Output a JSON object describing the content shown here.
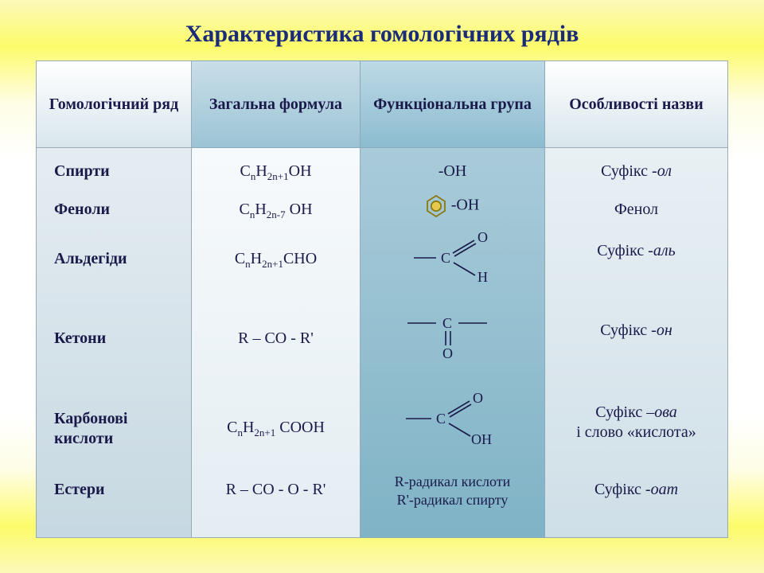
{
  "title": "Характеристика гомологічних рядів",
  "columns": {
    "c1": "Гомологічний ряд",
    "c2": "Загальна формула",
    "c3": "Функціональна група",
    "c4": "Особливості назви"
  },
  "rows": {
    "alcohols": {
      "name": "Спирти",
      "formula_html": "C<span class='sub'>n</span>H<span class='sub'>2n+1</span>OH",
      "group_text": "-ОН",
      "naming_html": "Суфікс -<span class='it'>ол</span>"
    },
    "phenols": {
      "name": "Феноли",
      "formula_html": "C<span class='sub'>n</span>H<span class='sub'>2n-7</span> OH",
      "group_text": "-ОН",
      "naming_html": "Фенол"
    },
    "aldehydes": {
      "name": "Альдегіди",
      "formula_html": "C<span class='sub'>n</span>H<span class='sub'>2n+1</span>CHO",
      "group_text": "",
      "naming_html": "Суфікс -<span class='it'>аль</span>"
    },
    "ketones": {
      "name": "Кетони",
      "formula_html": "R – CO - R'",
      "group_text": "",
      "naming_html": "Суфікс -<span class='it'>он</span>"
    },
    "carboxylic": {
      "name_html": "Карбонові<br>кислоти",
      "formula_html": "C<span class='sub'>n</span>H<span class='sub'>2n+1</span> COOH",
      "group_text": "",
      "naming_html": "Суфікс –<span class='it'>ова</span><br>і слово «кислота»"
    },
    "esters": {
      "name": "Естери",
      "formula_html": "R – CO - O - R'",
      "group_text_html": "R-радикал кислоти<br>R'-радикал спирту",
      "naming_html": "Суфікс -<span class='it'>оат</span>"
    }
  },
  "colors": {
    "benzene_stroke": "#8a7a12",
    "benzene_fill": "#e6c84a",
    "text": "#1a1a4a"
  }
}
